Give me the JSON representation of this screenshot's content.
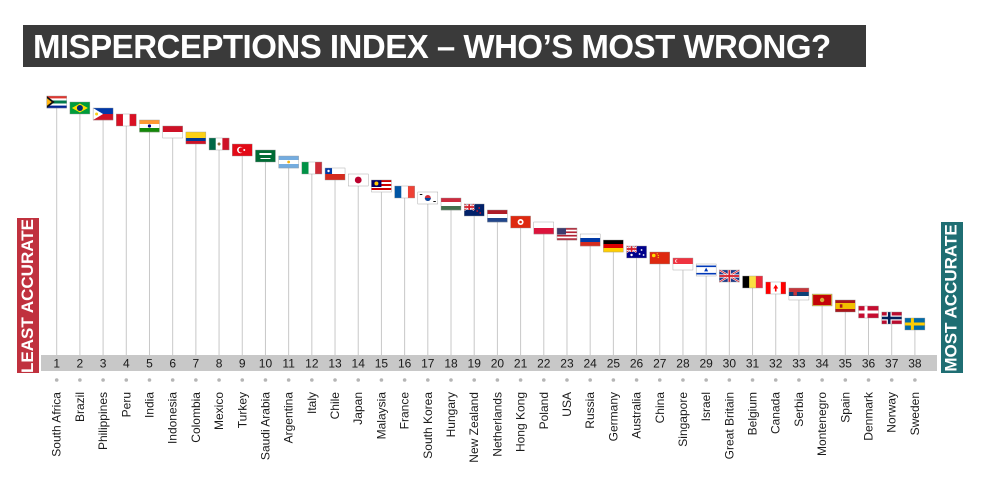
{
  "title": "MISPERCEPTIONS INDEX – WHO’S MOST WRONG?",
  "left_label": "LEAST ACCURATE",
  "right_label": "MOST ACCURATE",
  "colors": {
    "title_bg": "#3a3a3a",
    "least_accurate": "#c0313e",
    "most_accurate": "#1f6e73",
    "rank_band": "#c8c8c8",
    "stem": "#c8c8c8"
  },
  "chart_data": {
    "type": "bar",
    "categories": [
      "South Africa",
      "Brazil",
      "Philippines",
      "Peru",
      "India",
      "Indonesia",
      "Colombia",
      "Mexico",
      "Turkey",
      "Saudi Arabia",
      "Argentina",
      "Italy",
      "Chile",
      "Japan",
      "Malaysia",
      "France",
      "South Korea",
      "Hungary",
      "New Zealand",
      "Netherlands",
      "Hong Kong",
      "Poland",
      "USA",
      "Russia",
      "Germany",
      "Australia",
      "China",
      "Singapore",
      "Israel",
      "Great Britain",
      "Belgium",
      "Canada",
      "Serbia",
      "Montenegro",
      "Spain",
      "Denmark",
      "Norway",
      "Sweden"
    ],
    "ranks": [
      1,
      2,
      3,
      4,
      5,
      6,
      7,
      8,
      9,
      10,
      11,
      12,
      13,
      14,
      15,
      16,
      17,
      18,
      19,
      20,
      21,
      22,
      23,
      24,
      25,
      26,
      27,
      28,
      29,
      30,
      31,
      32,
      33,
      34,
      35,
      36,
      37,
      38
    ],
    "ylim": [
      1,
      38
    ],
    "flag_icons": [
      "south-africa-flag-icon",
      "brazil-flag-icon",
      "philippines-flag-icon",
      "peru-flag-icon",
      "india-flag-icon",
      "indonesia-flag-icon",
      "colombia-flag-icon",
      "mexico-flag-icon",
      "turkey-flag-icon",
      "saudi-arabia-flag-icon",
      "argentina-flag-icon",
      "italy-flag-icon",
      "chile-flag-icon",
      "japan-flag-icon",
      "malaysia-flag-icon",
      "france-flag-icon",
      "south-korea-flag-icon",
      "hungary-flag-icon",
      "new-zealand-flag-icon",
      "netherlands-flag-icon",
      "hong-kong-flag-icon",
      "poland-flag-icon",
      "usa-flag-icon",
      "russia-flag-icon",
      "germany-flag-icon",
      "australia-flag-icon",
      "china-flag-icon",
      "singapore-flag-icon",
      "israel-flag-icon",
      "great-britain-flag-icon",
      "belgium-flag-icon",
      "canada-flag-icon",
      "serbia-flag-icon",
      "montenegro-flag-icon",
      "spain-flag-icon",
      "denmark-flag-icon",
      "norway-flag-icon",
      "sweden-flag-icon"
    ],
    "grid": false
  }
}
